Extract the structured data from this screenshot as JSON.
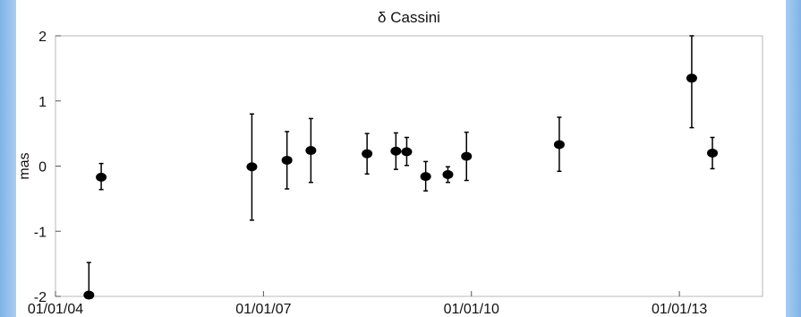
{
  "chart_data": {
    "type": "scatter",
    "title": "δ Cassini",
    "xlabel": "",
    "ylabel": "mas",
    "xlim": [
      "2004-01-01",
      "2014-03-15"
    ],
    "ylim": [
      -2,
      2
    ],
    "grid": false,
    "x_ticks": [
      "01/01/04",
      "01/01/07",
      "01/01/10",
      "01/01/13"
    ],
    "x_tick_dates": [
      "2004-01-01",
      "2007-01-01",
      "2010-01-01",
      "2013-01-01"
    ],
    "y_ticks": [
      2,
      1,
      0,
      -1,
      -2
    ],
    "points": [
      {
        "date": "2004-06-25",
        "value": -1.98,
        "low": -2.0,
        "high": -1.48
      },
      {
        "date": "2004-08-29",
        "value": -0.17,
        "low": -0.36,
        "high": 0.04
      },
      {
        "date": "2006-11-01",
        "value": -0.01,
        "low": -0.83,
        "high": 0.8
      },
      {
        "date": "2007-05-05",
        "value": 0.09,
        "low": -0.35,
        "high": 0.53
      },
      {
        "date": "2007-09-08",
        "value": 0.24,
        "low": -0.25,
        "high": 0.73
      },
      {
        "date": "2008-06-30",
        "value": 0.19,
        "low": -0.12,
        "high": 0.5
      },
      {
        "date": "2008-11-29",
        "value": 0.23,
        "low": -0.05,
        "high": 0.51
      },
      {
        "date": "2009-01-25",
        "value": 0.22,
        "low": 0.01,
        "high": 0.44
      },
      {
        "date": "2009-05-05",
        "value": -0.16,
        "low": -0.38,
        "high": 0.07
      },
      {
        "date": "2009-08-30",
        "value": -0.13,
        "low": -0.25,
        "high": -0.01
      },
      {
        "date": "2009-12-06",
        "value": 0.15,
        "low": -0.22,
        "high": 0.52
      },
      {
        "date": "2011-04-09",
        "value": 0.33,
        "low": -0.08,
        "high": 0.75
      },
      {
        "date": "2013-03-07",
        "value": 1.35,
        "low": 0.59,
        "high": 2.0
      },
      {
        "date": "2013-06-24",
        "value": 0.2,
        "low": -0.04,
        "high": 0.44
      }
    ]
  }
}
